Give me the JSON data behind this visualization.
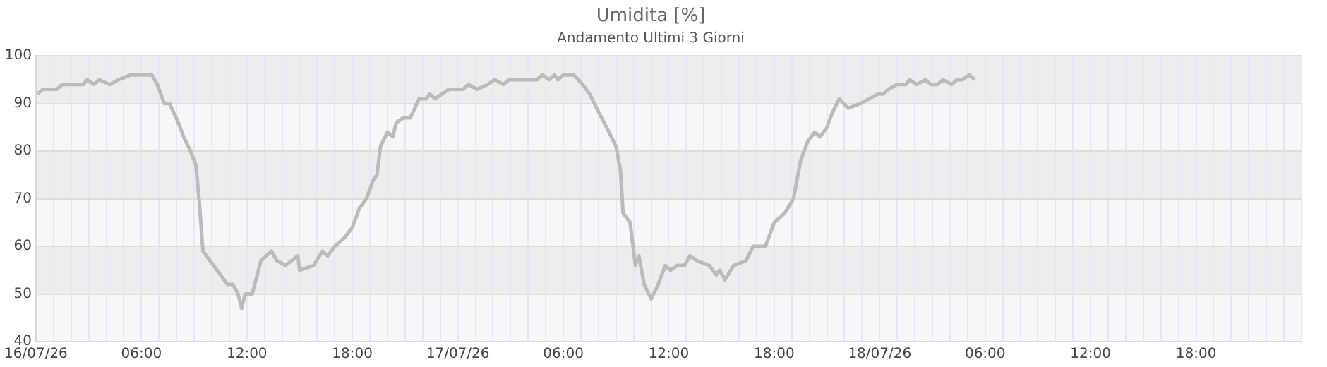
{
  "chart_data": {
    "type": "line",
    "title": "Umidita [%]",
    "subtitle": "Andamento Ultimi 3 Giorni",
    "x": [
      "--07-16T00:05",
      "--07-16T00:24",
      "--07-16T01:12",
      "--07-16T01:30",
      "--07-16T02:42",
      "--07-16T02:54",
      "--07-16T03:18",
      "--07-16T03:36",
      "--07-16T04:12",
      "--07-16T04:42",
      "--07-16T05:24",
      "--07-16T06:36",
      "--07-16T06:54",
      "--07-16T07:18",
      "--07-16T07:36",
      "--07-16T08:06",
      "--07-16T08:24",
      "--07-16T08:48",
      "--07-16T09:06",
      "--07-16T09:18",
      "--07-16T09:30",
      "--07-16T09:54",
      "--07-16T10:18",
      "--07-16T10:54",
      "--07-16T11:12",
      "--07-16T11:30",
      "--07-16T11:42",
      "--07-16T11:54",
      "--07-16T12:18",
      "--07-16T12:48",
      "--07-16T13:24",
      "--07-16T13:42",
      "--07-16T14:12",
      "--07-16T14:54",
      "--07-16T15:00",
      "--07-16T15:48",
      "--07-16T16:18",
      "--07-16T16:36",
      "--07-16T17:00",
      "--07-16T17:36",
      "--07-16T18:00",
      "--07-16T18:24",
      "--07-16T18:48",
      "--07-16T19:12",
      "--07-16T19:24",
      "--07-16T19:36",
      "--07-16T20:00",
      "--07-16T20:18",
      "--07-16T20:30",
      "--07-16T20:54",
      "--07-16T21:18",
      "--07-16T21:48",
      "--07-16T22:12",
      "--07-16T22:24",
      "--07-16T22:42",
      "--07-16T23:06",
      "--07-16T23:30",
      "--07-17T00:18",
      "--07-17T00:36",
      "--07-17T01:06",
      "--07-17T01:42",
      "--07-17T02:06",
      "--07-17T02:36",
      "--07-17T02:54",
      "--07-17T04:30",
      "--07-17T04:48",
      "--07-17T05:12",
      "--07-17T05:30",
      "--07-17T05:42",
      "--07-17T06:00",
      "--07-17T06:36",
      "--07-17T07:06",
      "--07-17T07:30",
      "--07-17T07:54",
      "--07-17T08:36",
      "--07-17T09:00",
      "--07-17T09:15",
      "--07-17T09:24",
      "--07-17T09:48",
      "--07-17T10:06",
      "--07-17T10:18",
      "--07-17T10:36",
      "--07-17T11:00",
      "--07-17T11:24",
      "--07-17T11:48",
      "--07-17T12:06",
      "--07-17T12:30",
      "--07-17T12:54",
      "--07-17T13:12",
      "--07-17T13:36",
      "--07-17T14:18",
      "--07-17T14:42",
      "--07-17T14:54",
      "--07-17T15:12",
      "--07-17T15:42",
      "--07-17T16:24",
      "--07-17T16:48",
      "--07-17T17:30",
      "--07-17T18:00",
      "--07-17T18:36",
      "--07-17T19:06",
      "--07-17T19:30",
      "--07-17T19:54",
      "--07-17T20:18",
      "--07-17T20:36",
      "--07-17T21:00",
      "--07-17T21:18",
      "--07-17T21:42",
      "--07-17T22:12",
      "--07-17T22:54",
      "--07-17T23:24",
      "--07-17T23:54",
      "--07-18T00:12",
      "--07-18T00:30",
      "--07-18T01:00",
      "--07-18T01:30",
      "--07-18T01:42",
      "--07-18T02:06",
      "--07-18T02:36",
      "--07-18T02:54",
      "--07-18T03:18",
      "--07-18T03:36",
      "--07-18T04:06",
      "--07-18T04:24",
      "--07-18T04:42",
      "--07-18T05:06",
      "--07-18T05:24"
    ],
    "series": [
      {
        "color": "#bbbbbb",
        "values": [
          92,
          93,
          93,
          94,
          94,
          95,
          94,
          95,
          94,
          95,
          96,
          96,
          94,
          90,
          90,
          86,
          83,
          80,
          77,
          69,
          59,
          57,
          55,
          52,
          52,
          50,
          47,
          50,
          50,
          57,
          59,
          57,
          56,
          58,
          55,
          56,
          59,
          58,
          60,
          62,
          64,
          68,
          70,
          74,
          75,
          81,
          84,
          83,
          86,
          87,
          87,
          91,
          91,
          92,
          91,
          92,
          93,
          93,
          94,
          93,
          94,
          95,
          94,
          95,
          95,
          96,
          95,
          96,
          95,
          96,
          96,
          94,
          92,
          89,
          84,
          81,
          76,
          67,
          65,
          56,
          58,
          52,
          49,
          52,
          56,
          55,
          56,
          56,
          58,
          57,
          56,
          54,
          55,
          53,
          56,
          57,
          60,
          60,
          65,
          67,
          70,
          78,
          82,
          84,
          83,
          85,
          88,
          91,
          89,
          90,
          91,
          92,
          92,
          93,
          94,
          94,
          95,
          94,
          95,
          94,
          94,
          95,
          94,
          95,
          95,
          96,
          95
        ]
      }
    ],
    "xlim": [
      "--07-16T00:00",
      "--07-19T00:00"
    ],
    "xticks": [
      {
        "value": "--07-16T00:00",
        "label": "16/07/26"
      },
      {
        "value": "--07-16T01:00",
        "label": null
      },
      {
        "value": "--07-16T02:00",
        "label": null
      },
      {
        "value": "--07-16T03:00",
        "label": null
      },
      {
        "value": "--07-16T04:00",
        "label": null
      },
      {
        "value": "--07-16T05:00",
        "label": null
      },
      {
        "value": "--07-16T06:00",
        "label": "06:00"
      },
      {
        "value": "--07-16T07:00",
        "label": null
      },
      {
        "value": "--07-16T08:00",
        "label": null
      },
      {
        "value": "--07-16T09:00",
        "label": null
      },
      {
        "value": "--07-16T10:00",
        "label": null
      },
      {
        "value": "--07-16T11:00",
        "label": null
      },
      {
        "value": "--07-16T12:00",
        "label": "12:00"
      },
      {
        "value": "--07-16T13:00",
        "label": null
      },
      {
        "value": "--07-16T14:00",
        "label": null
      },
      {
        "value": "--07-16T15:00",
        "label": null
      },
      {
        "value": "--07-16T16:00",
        "label": null
      },
      {
        "value": "--07-16T17:00",
        "label": null
      },
      {
        "value": "--07-16T18:00",
        "label": "18:00"
      },
      {
        "value": "--07-16T19:00",
        "label": null
      },
      {
        "value": "--07-16T20:00",
        "label": null
      },
      {
        "value": "--07-16T21:00",
        "label": null
      },
      {
        "value": "--07-16T22:00",
        "label": null
      },
      {
        "value": "--07-16T23:00",
        "label": null
      },
      {
        "value": "--07-17T00:00",
        "label": "17/07/26"
      },
      {
        "value": "--07-17T01:00",
        "label": null
      },
      {
        "value": "--07-17T02:00",
        "label": null
      },
      {
        "value": "--07-17T03:00",
        "label": null
      },
      {
        "value": "--07-17T04:00",
        "label": null
      },
      {
        "value": "--07-17T05:00",
        "label": null
      },
      {
        "value": "--07-17T06:00",
        "label": "06:00"
      },
      {
        "value": "--07-17T07:00",
        "label": null
      },
      {
        "value": "--07-17T08:00",
        "label": null
      },
      {
        "value": "--07-17T09:00",
        "label": null
      },
      {
        "value": "--07-17T10:00",
        "label": null
      },
      {
        "value": "--07-17T11:00",
        "label": null
      },
      {
        "value": "--07-17T12:00",
        "label": "12:00"
      },
      {
        "value": "--07-17T13:00",
        "label": null
      },
      {
        "value": "--07-17T14:00",
        "label": null
      },
      {
        "value": "--07-17T15:00",
        "label": null
      },
      {
        "value": "--07-17T16:00",
        "label": null
      },
      {
        "value": "--07-17T17:00",
        "label": null
      },
      {
        "value": "--07-17T18:00",
        "label": "18:00"
      },
      {
        "value": "--07-17T19:00",
        "label": null
      },
      {
        "value": "--07-17T20:00",
        "label": null
      },
      {
        "value": "--07-17T21:00",
        "label": null
      },
      {
        "value": "--07-17T22:00",
        "label": null
      },
      {
        "value": "--07-17T23:00",
        "label": null
      },
      {
        "value": "--07-18T00:00",
        "label": "18/07/26"
      },
      {
        "value": "--07-18T01:00",
        "label": null
      },
      {
        "value": "--07-18T02:00",
        "label": null
      },
      {
        "value": "--07-18T03:00",
        "label": null
      },
      {
        "value": "--07-18T04:00",
        "label": null
      },
      {
        "value": "--07-18T05:00",
        "label": null
      },
      {
        "value": "--07-18T06:00",
        "label": "06:00"
      },
      {
        "value": "--07-18T07:00",
        "label": null
      },
      {
        "value": "--07-18T08:00",
        "label": null
      },
      {
        "value": "--07-18T09:00",
        "label": null
      },
      {
        "value": "--07-18T10:00",
        "label": null
      },
      {
        "value": "--07-18T11:00",
        "label": null
      },
      {
        "value": "--07-18T12:00",
        "label": "12:00"
      },
      {
        "value": "--07-18T13:00",
        "label": null
      },
      {
        "value": "--07-18T14:00",
        "label": null
      },
      {
        "value": "--07-18T15:00",
        "label": null
      },
      {
        "value": "--07-18T16:00",
        "label": null
      },
      {
        "value": "--07-18T17:00",
        "label": null
      },
      {
        "value": "--07-18T18:00",
        "label": "18:00"
      },
      {
        "value": "--07-18T19:00",
        "label": null
      },
      {
        "value": "--07-18T20:00",
        "label": null
      },
      {
        "value": "--07-18T21:00",
        "label": null
      },
      {
        "value": "--07-18T22:00",
        "label": null
      },
      {
        "value": "--07-18T23:00",
        "label": null
      },
      {
        "value": "--07-19T00:00",
        "label": null
      }
    ],
    "ylim": [
      40,
      100
    ],
    "yticks": [
      40,
      50,
      60,
      70,
      80,
      90,
      100
    ],
    "grid": true,
    "legend": false,
    "marker": "none",
    "line_style": "solid"
  }
}
